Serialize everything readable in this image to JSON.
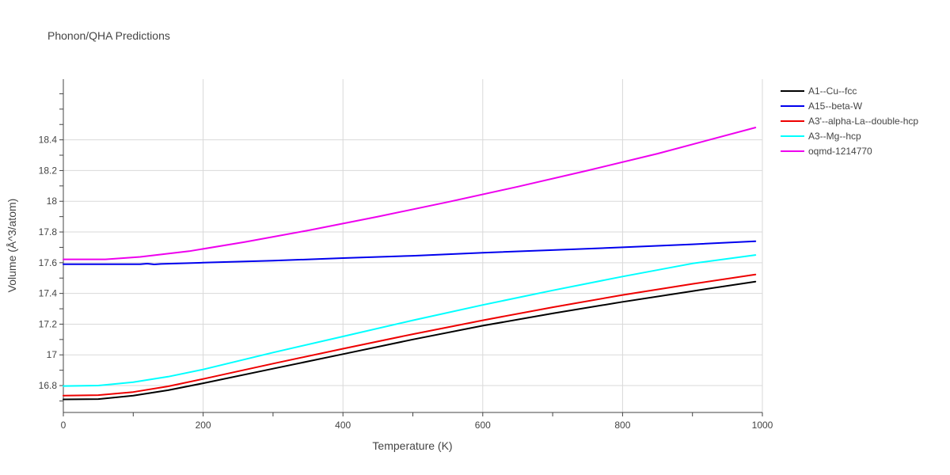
{
  "chart_data": {
    "type": "line",
    "title": "Phonon/QHA Predictions",
    "xlabel": "Temperature (K)",
    "ylabel": "Volume (Å^3/atom)",
    "xlim": [
      0,
      1000
    ],
    "ylim": [
      16.625,
      18.795
    ],
    "xticks": [
      0,
      200,
      400,
      600,
      800,
      1000
    ],
    "xtick_labels": [
      "0",
      "200",
      "400",
      "600",
      "800",
      "1000"
    ],
    "yticks": [
      16.8,
      17.0,
      17.2,
      17.4,
      17.6,
      17.8,
      18.0,
      18.2,
      18.4
    ],
    "ytick_labels": [
      "16.8",
      "17",
      "17.2",
      "17.4",
      "17.6",
      "17.8",
      "18",
      "18.2",
      "18.4"
    ],
    "grid": true,
    "legend_position": "top-right",
    "series": [
      {
        "name": "A1--Cu--fcc",
        "color": "#000000",
        "x": [
          0,
          50,
          100,
          150,
          200,
          300,
          400,
          500,
          600,
          700,
          800,
          900,
          990
        ],
        "y": [
          16.71,
          16.712,
          16.735,
          16.77,
          16.815,
          16.91,
          17.005,
          17.1,
          17.19,
          17.27,
          17.345,
          17.415,
          17.477
        ]
      },
      {
        "name": "A15--beta-W",
        "color": "#0000ee",
        "x": [
          0,
          50,
          110,
          120,
          130,
          140,
          200,
          300,
          400,
          500,
          600,
          700,
          800,
          900,
          990
        ],
        "y": [
          17.59,
          17.59,
          17.59,
          17.594,
          17.589,
          17.592,
          17.6,
          17.613,
          17.63,
          17.645,
          17.665,
          17.682,
          17.7,
          17.72,
          17.74
        ]
      },
      {
        "name": "A3'--alpha-La--double-hcp",
        "color": "#ee0000",
        "x": [
          0,
          50,
          100,
          150,
          200,
          300,
          400,
          500,
          600,
          700,
          800,
          900,
          990
        ],
        "y": [
          16.735,
          16.738,
          16.758,
          16.795,
          16.843,
          16.943,
          17.04,
          17.135,
          17.225,
          17.31,
          17.39,
          17.462,
          17.523
        ]
      },
      {
        "name": "A3--Mg--hcp",
        "color": "#00ffff",
        "x": [
          0,
          50,
          100,
          150,
          200,
          300,
          400,
          500,
          600,
          700,
          800,
          900,
          990
        ],
        "y": [
          16.797,
          16.8,
          16.822,
          16.858,
          16.905,
          17.015,
          17.12,
          17.225,
          17.325,
          17.42,
          17.51,
          17.595,
          17.65
        ]
      },
      {
        "name": "oqmd-1214770",
        "color": "#ee00ee",
        "x": [
          0,
          60,
          110,
          180,
          260,
          350,
          450,
          550,
          650,
          750,
          850,
          990
        ],
        "y": [
          17.622,
          17.622,
          17.638,
          17.675,
          17.735,
          17.81,
          17.9,
          17.995,
          18.095,
          18.2,
          18.31,
          18.48
        ]
      }
    ]
  }
}
